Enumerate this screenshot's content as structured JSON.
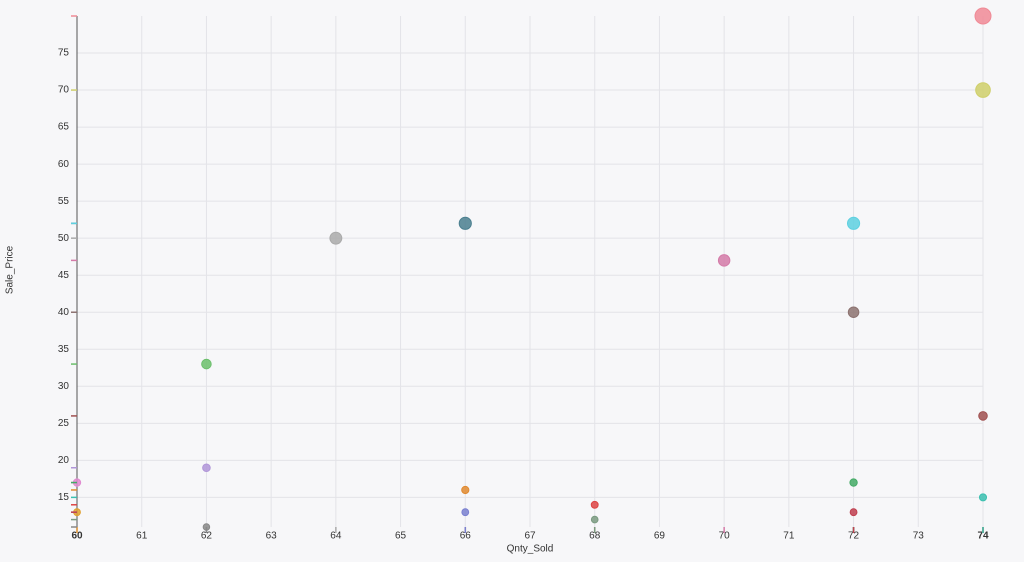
{
  "chart_data": {
    "type": "scatter",
    "x_label": "Qnty_Sold",
    "y_label": "Sale_Price",
    "x": [
      74,
      74,
      66,
      72,
      64,
      70,
      72,
      62,
      74,
      62,
      60,
      72,
      66,
      74,
      68,
      60,
      66,
      72,
      68,
      62
    ],
    "values": [
      80,
      70,
      52,
      52,
      50,
      47,
      40,
      33,
      26,
      19,
      17,
      17,
      16,
      15,
      14,
      13,
      13,
      13,
      12,
      11
    ],
    "sizes": [
      80,
      70,
      52,
      52,
      50,
      47,
      40,
      33,
      26,
      19,
      17,
      17,
      16,
      15,
      14,
      13,
      13,
      13,
      12,
      11
    ],
    "colors": [
      "#f08a96",
      "#cfcf6a",
      "#4a7f8f",
      "#5dd0e0",
      "#aaaaaa",
      "#d47aa8",
      "#8c7270",
      "#6bbf6b",
      "#a05050",
      "#b095d8",
      "#e08ad0",
      "#44aa66",
      "#e08a30",
      "#3cc0b0",
      "#dd4444",
      "#e0a030",
      "#7a80d0",
      "#c04050",
      "#7a9a80",
      "#888888"
    ],
    "xlim": [
      60,
      74
    ],
    "xticks": [
      60,
      61,
      62,
      63,
      64,
      65,
      66,
      67,
      68,
      69,
      70,
      71,
      72,
      73,
      74
    ],
    "ylim": [
      11,
      80
    ],
    "yticks": [
      15,
      20,
      25,
      30,
      35,
      40,
      45,
      50,
      55,
      60,
      65,
      70,
      75
    ],
    "grid": true
  }
}
